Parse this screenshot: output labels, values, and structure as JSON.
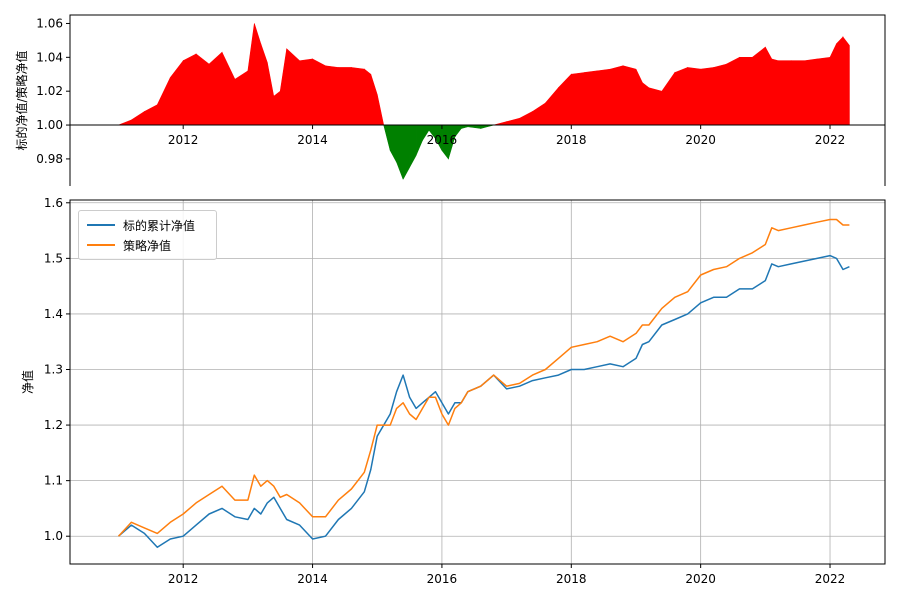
{
  "chart_data": [
    {
      "type": "area",
      "ylabel": "标的净值/策略净值",
      "baseline": 1.0,
      "ylim": [
        0.964,
        1.065
      ],
      "xlim": [
        2010.25,
        2022.85
      ],
      "yticks": [
        0.98,
        1.0,
        1.02,
        1.04,
        1.06
      ],
      "ytick_labels": [
        "0.98",
        "1.00",
        "1.02",
        "1.04",
        "1.06"
      ],
      "xticks": [
        2012,
        2014,
        2016,
        2018,
        2020,
        2022
      ],
      "xtick_labels": [
        "2012",
        "2014",
        "2016",
        "2018",
        "2020",
        "2022"
      ],
      "colors": {
        "above": "#ff0000",
        "below": "#008000"
      },
      "x": [
        2011.0,
        2011.2,
        2011.4,
        2011.6,
        2011.8,
        2012.0,
        2012.2,
        2012.4,
        2012.6,
        2012.8,
        2013.0,
        2013.1,
        2013.2,
        2013.3,
        2013.4,
        2013.5,
        2013.6,
        2013.8,
        2014.0,
        2014.2,
        2014.4,
        2014.6,
        2014.8,
        2014.9,
        2015.0,
        2015.1,
        2015.2,
        2015.3,
        2015.4,
        2015.5,
        2015.6,
        2015.7,
        2015.8,
        2015.9,
        2016.0,
        2016.1,
        2016.2,
        2016.3,
        2016.4,
        2016.6,
        2016.8,
        2017.0,
        2017.2,
        2017.4,
        2017.6,
        2017.8,
        2018.0,
        2018.2,
        2018.4,
        2018.6,
        2018.8,
        2019.0,
        2019.1,
        2019.2,
        2019.4,
        2019.6,
        2019.8,
        2020.0,
        2020.2,
        2020.4,
        2020.6,
        2020.8,
        2021.0,
        2021.1,
        2021.2,
        2021.4,
        2021.6,
        2021.8,
        2022.0,
        2022.1,
        2022.2,
        2022.3
      ],
      "values": [
        1.0,
        1.003,
        1.008,
        1.012,
        1.028,
        1.038,
        1.042,
        1.036,
        1.043,
        1.027,
        1.032,
        1.06,
        1.048,
        1.037,
        1.017,
        1.02,
        1.045,
        1.038,
        1.039,
        1.035,
        1.034,
        1.034,
        1.033,
        1.03,
        1.018,
        1.0,
        0.985,
        0.978,
        0.968,
        0.975,
        0.982,
        0.991,
        0.997,
        0.992,
        0.985,
        0.98,
        0.993,
        0.998,
        0.999,
        0.998,
        1.0,
        1.002,
        1.004,
        1.008,
        1.013,
        1.022,
        1.03,
        1.031,
        1.032,
        1.033,
        1.035,
        1.033,
        1.025,
        1.022,
        1.02,
        1.031,
        1.034,
        1.033,
        1.034,
        1.036,
        1.04,
        1.04,
        1.046,
        1.039,
        1.038,
        1.038,
        1.038,
        1.039,
        1.04,
        1.048,
        1.052,
        1.047
      ]
    },
    {
      "type": "line",
      "ylabel": "净值",
      "ylim": [
        0.95,
        1.605
      ],
      "xlim": [
        2010.25,
        2022.85
      ],
      "yticks": [
        1.0,
        1.1,
        1.2,
        1.3,
        1.4,
        1.5,
        1.6
      ],
      "ytick_labels": [
        "1.0",
        "1.1",
        "1.2",
        "1.3",
        "1.4",
        "1.5",
        "1.6"
      ],
      "xticks": [
        2012,
        2014,
        2016,
        2018,
        2020,
        2022
      ],
      "xtick_labels": [
        "2012",
        "2014",
        "2016",
        "2018",
        "2020",
        "2022"
      ],
      "grid": true,
      "legend_placement": "top-left",
      "x": [
        2011.0,
        2011.2,
        2011.4,
        2011.6,
        2011.8,
        2012.0,
        2012.2,
        2012.4,
        2012.6,
        2012.8,
        2013.0,
        2013.1,
        2013.2,
        2013.3,
        2013.4,
        2013.5,
        2013.6,
        2013.8,
        2014.0,
        2014.2,
        2014.4,
        2014.6,
        2014.8,
        2014.9,
        2015.0,
        2015.1,
        2015.2,
        2015.3,
        2015.4,
        2015.5,
        2015.6,
        2015.7,
        2015.8,
        2015.9,
        2016.0,
        2016.1,
        2016.2,
        2016.3,
        2016.4,
        2016.6,
        2016.8,
        2017.0,
        2017.2,
        2017.4,
        2017.6,
        2017.8,
        2018.0,
        2018.2,
        2018.4,
        2018.6,
        2018.8,
        2019.0,
        2019.1,
        2019.2,
        2019.4,
        2019.6,
        2019.8,
        2020.0,
        2020.2,
        2020.4,
        2020.6,
        2020.8,
        2021.0,
        2021.1,
        2021.2,
        2021.4,
        2021.6,
        2021.8,
        2022.0,
        2022.1,
        2022.2,
        2022.3
      ],
      "series": [
        {
          "name": "标的累计净值",
          "color": "#1f77b4",
          "values": [
            1.0,
            1.02,
            1.005,
            0.98,
            0.995,
            1.0,
            1.02,
            1.04,
            1.05,
            1.035,
            1.03,
            1.05,
            1.04,
            1.06,
            1.07,
            1.05,
            1.03,
            1.02,
            0.995,
            1.0,
            1.03,
            1.05,
            1.08,
            1.12,
            1.18,
            1.2,
            1.22,
            1.26,
            1.29,
            1.25,
            1.23,
            1.24,
            1.25,
            1.26,
            1.24,
            1.22,
            1.24,
            1.24,
            1.26,
            1.27,
            1.29,
            1.265,
            1.27,
            1.28,
            1.285,
            1.29,
            1.3,
            1.3,
            1.305,
            1.31,
            1.305,
            1.32,
            1.345,
            1.35,
            1.38,
            1.39,
            1.4,
            1.42,
            1.43,
            1.43,
            1.445,
            1.445,
            1.46,
            1.49,
            1.485,
            1.49,
            1.495,
            1.5,
            1.505,
            1.5,
            1.48,
            1.485
          ]
        },
        {
          "name": "策略净值",
          "color": "#ff7f0e",
          "values": [
            1.0,
            1.025,
            1.015,
            1.005,
            1.025,
            1.04,
            1.06,
            1.075,
            1.09,
            1.065,
            1.065,
            1.11,
            1.09,
            1.1,
            1.09,
            1.07,
            1.075,
            1.06,
            1.035,
            1.035,
            1.065,
            1.085,
            1.115,
            1.155,
            1.2,
            1.2,
            1.2,
            1.23,
            1.24,
            1.22,
            1.21,
            1.23,
            1.25,
            1.25,
            1.22,
            1.2,
            1.23,
            1.24,
            1.26,
            1.27,
            1.29,
            1.27,
            1.275,
            1.29,
            1.3,
            1.32,
            1.34,
            1.345,
            1.35,
            1.36,
            1.35,
            1.365,
            1.38,
            1.38,
            1.41,
            1.43,
            1.44,
            1.47,
            1.48,
            1.485,
            1.5,
            1.51,
            1.525,
            1.555,
            1.55,
            1.555,
            1.56,
            1.565,
            1.57,
            1.57,
            1.56,
            1.56
          ]
        }
      ]
    }
  ]
}
